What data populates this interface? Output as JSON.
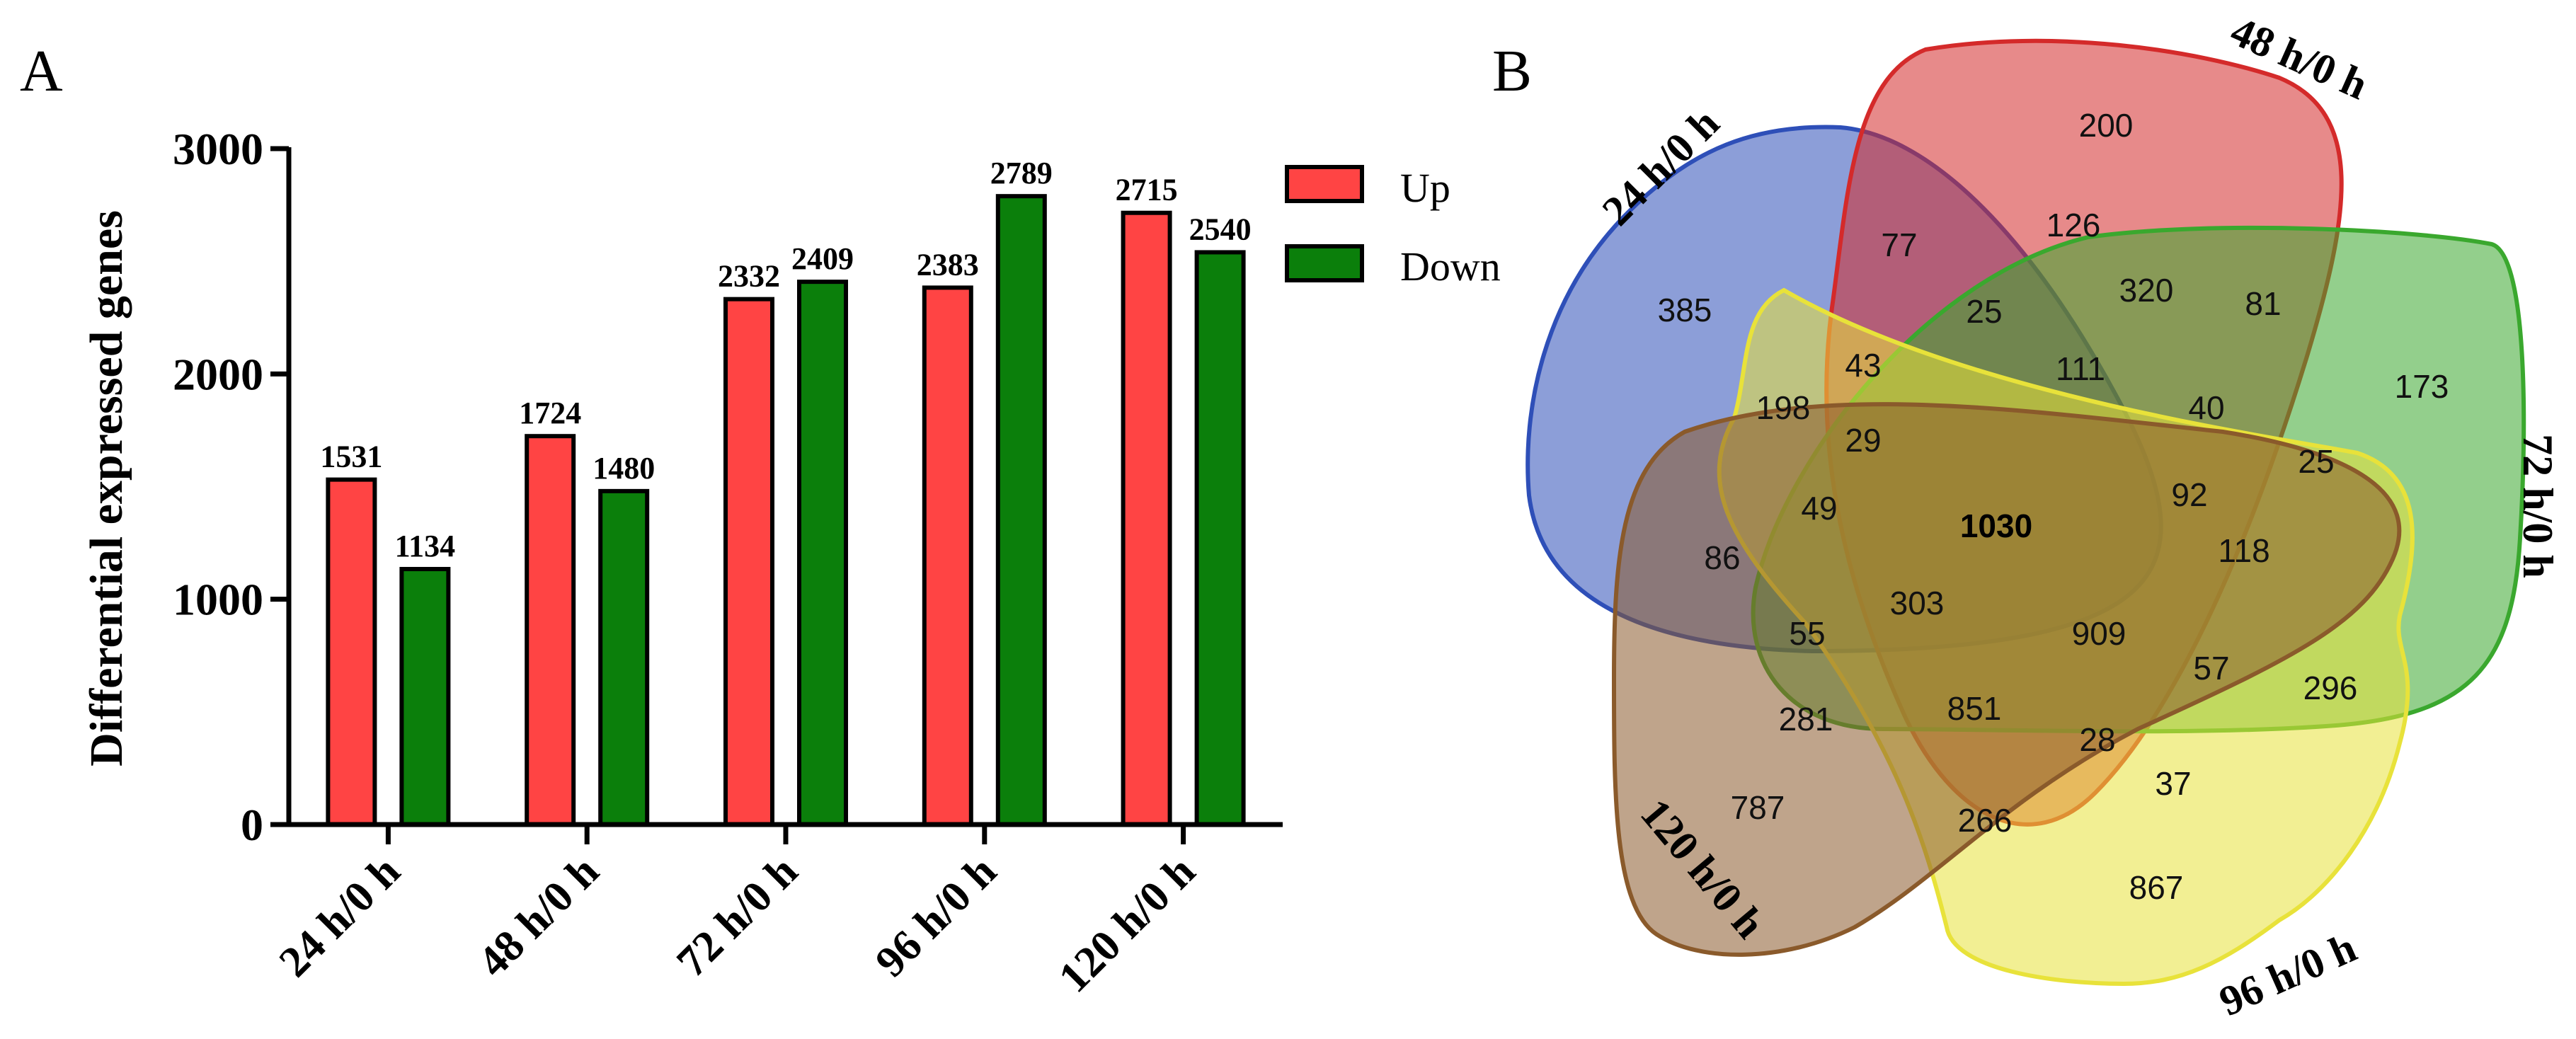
{
  "panel_a": {
    "letter": "A"
  },
  "panel_b": {
    "letter": "B"
  },
  "colors": {
    "up": "#ff4444",
    "down": "#0b7f0b",
    "set_24": "#2e4fb8",
    "set_48": "#d42a2a",
    "set_72": "#3aa82e",
    "set_96": "#e8e23a",
    "set_120": "#8a5a2b"
  },
  "chart_data": [
    {
      "type": "bar",
      "title": "",
      "xlabel": "",
      "ylabel": "Differential expressed genes",
      "categories": [
        "24 h/0 h",
        "48 h/0 h",
        "72 h/0 h",
        "96 h/0 h",
        "120 h/0 h"
      ],
      "series": [
        {
          "name": "Up",
          "values": [
            1531,
            1724,
            2332,
            2383,
            2715
          ],
          "labels": [
            "1531",
            "1724",
            "2332",
            "2383",
            "2715"
          ]
        },
        {
          "name": "Down",
          "values": [
            1134,
            1480,
            2409,
            2789,
            2540
          ],
          "labels": [
            "1134",
            "1480",
            "2409",
            "2789",
            "2540"
          ]
        }
      ],
      "ylim": [
        0,
        3000
      ],
      "yticks": [
        0,
        1000,
        2000,
        3000
      ],
      "ytick_labels": [
        "0",
        "1000",
        "2000",
        "3000"
      ],
      "legend": [
        "Up",
        "Down"
      ],
      "legend_position": "top-right",
      "grid": false
    },
    {
      "type": "venn",
      "title": "",
      "sets": [
        "24 h/0 h",
        "48 h/0 h",
        "72 h/0 h",
        "96 h/0 h",
        "120 h/0 h"
      ],
      "region_counts": [
        "200",
        "77",
        "126",
        "320",
        "81",
        "385",
        "25",
        "111",
        "173",
        "43",
        "198",
        "40",
        "29",
        "25",
        "92",
        "49",
        "1030",
        "118",
        "86",
        "303",
        "55",
        "909",
        "57",
        "296",
        "281",
        "851",
        "28",
        "37",
        "787",
        "266",
        "867"
      ]
    }
  ]
}
